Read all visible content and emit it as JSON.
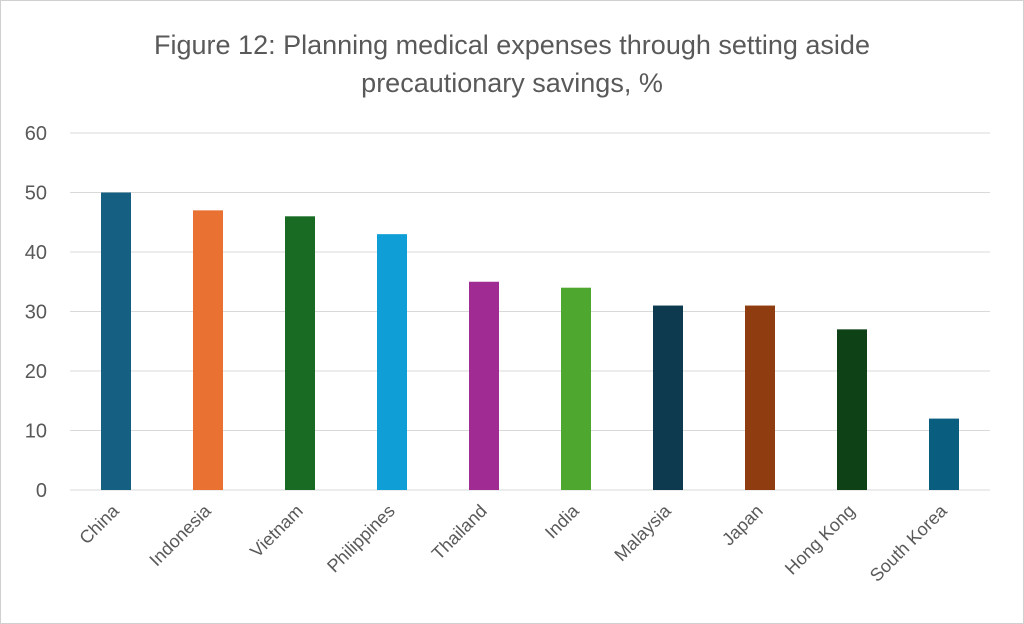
{
  "chart_data": {
    "type": "bar",
    "title_line1": "Figure 12: Planning medical expenses through setting aside",
    "title_line2": "precautionary savings, %",
    "categories": [
      "China",
      "Indonesia",
      "Vietnam",
      "Philippines",
      "Thailand",
      "India",
      "Malaysia",
      "Japan",
      "Hong Kong",
      "South Korea"
    ],
    "values": [
      50,
      47,
      46,
      43,
      35,
      34,
      31,
      31,
      27,
      12
    ],
    "colors": [
      "#156082",
      "#E97132",
      "#196B24",
      "#0F9ED5",
      "#A02B93",
      "#4EA72E",
      "#0E3A4F",
      "#8F3C10",
      "#0F4117",
      "#095D7F"
    ],
    "ylim": [
      0,
      60
    ],
    "yticks": [
      0,
      10,
      20,
      30,
      40,
      50,
      60
    ],
    "grid": true,
    "xlabel": "",
    "ylabel": ""
  }
}
